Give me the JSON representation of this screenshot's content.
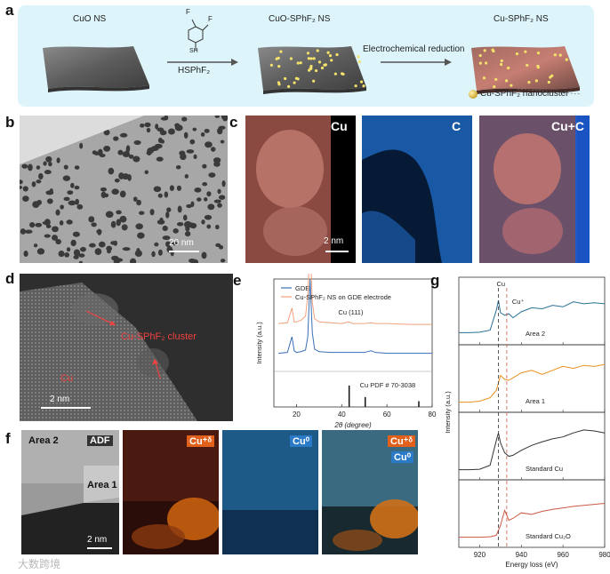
{
  "figure": {
    "panel_a": {
      "letter": "a",
      "stage1": "CuO NS",
      "reagent_formula": "HSPhF₂",
      "molecule_atom_f1": "F",
      "molecule_atom_f2": "F",
      "molecule_atom_sh": "SH",
      "stage2": "CuO-SPhF₂ NS",
      "step2": "Electrochemical reduction",
      "stage3": "Cu-SPhF₂ NS",
      "legend": "Cu-SPhF₂ nanocluster"
    },
    "panel_b": {
      "letter": "b",
      "scale": "20 nm"
    },
    "panel_c": {
      "letter": "c",
      "label_cu": "Cu",
      "label_c": "C",
      "label_cuc": "Cu+C",
      "scale": "2 nm"
    },
    "panel_d": {
      "letter": "d",
      "label_cluster": "Cu-SPhF₂ cluster",
      "label_cu": "Cu",
      "scale": "2 nm"
    },
    "panel_e": {
      "letter": "e"
    },
    "panel_f": {
      "letter": "f",
      "area2": "Area 2",
      "adf": "ADF",
      "area1": "Area 1",
      "cu_plus": "Cu⁺ᵟ",
      "cu_zero": "Cu⁰",
      "scale": "2 nm"
    },
    "panel_g": {
      "letter": "g"
    },
    "watermark": "大数跨境"
  },
  "colors": {
    "gde": "#3a6fb5",
    "cu_sphf2": "#f2a07a",
    "area2": "#2a7096",
    "area1": "#e8901c",
    "std_cu": "#333333",
    "std_cu2o": "#c85a44",
    "cu_map": "#e88068",
    "c_map": "#2a8ae0",
    "cluster_label": "#f04040"
  },
  "chart_data": [
    {
      "type": "line",
      "panel": "e",
      "xlabel": "2θ (degree)",
      "ylabel": "Intensity (a.u.)",
      "xlim": [
        10,
        80
      ],
      "xticks": [
        20,
        40,
        60,
        80
      ],
      "legend_placement": "top-right",
      "series": [
        {
          "name": "GDE",
          "x": [
            12,
            16,
            18,
            19,
            20,
            22,
            24,
            25,
            26,
            27,
            28,
            30,
            35,
            40,
            43,
            45,
            50,
            53,
            55,
            60,
            70,
            80
          ],
          "y": [
            0.1,
            0.11,
            0.3,
            0.13,
            0.11,
            0.12,
            0.14,
            0.3,
            1.0,
            0.35,
            0.15,
            0.12,
            0.11,
            0.11,
            0.11,
            0.11,
            0.11,
            0.13,
            0.11,
            0.1,
            0.1,
            0.1
          ]
        },
        {
          "name": "Cu-SPhF₂ NS on GDE electrode",
          "x": [
            12,
            16,
            18,
            19,
            20,
            22,
            24,
            25,
            26,
            27,
            28,
            30,
            35,
            40,
            43,
            45,
            50,
            53,
            55,
            60,
            70,
            80
          ],
          "y": [
            0.46,
            0.47,
            0.65,
            0.48,
            0.48,
            0.5,
            0.55,
            0.8,
            1.45,
            0.72,
            0.52,
            0.48,
            0.47,
            0.46,
            0.48,
            0.46,
            0.46,
            0.47,
            0.46,
            0.46,
            0.45,
            0.45
          ]
        }
      ],
      "annotations": [
        "Cu (111)",
        "Cu PDF # 70-3038"
      ],
      "reference_lines": [
        {
          "x": 43.3,
          "height": 0.26
        },
        {
          "x": 50.4,
          "height": 0.12
        },
        {
          "x": 74.1,
          "height": 0.07
        }
      ]
    },
    {
      "type": "line",
      "panel": "g",
      "xlabel": "Energy loss (eV)",
      "ylabel": "Intensity (a.u.)",
      "xlim": [
        910,
        980
      ],
      "xticks": [
        920,
        940,
        960,
        980
      ],
      "vertical_markers": [
        {
          "label": "Cu",
          "x": 929
        },
        {
          "label": "Cu⁺",
          "x": 933
        }
      ],
      "series": [
        {
          "name": "Area 2",
          "x": [
            910,
            915,
            920,
            925,
            928,
            929,
            930,
            932,
            934,
            936,
            940,
            945,
            950,
            955,
            960,
            965,
            970,
            975,
            980
          ],
          "y": [
            0.1,
            0.1,
            0.11,
            0.15,
            0.55,
            0.75,
            0.5,
            0.45,
            0.48,
            0.4,
            0.52,
            0.6,
            0.58,
            0.65,
            0.62,
            0.72,
            0.68,
            0.7,
            0.68
          ]
        },
        {
          "name": "Area 1",
          "x": [
            910,
            915,
            920,
            925,
            928,
            930,
            932,
            934,
            936,
            940,
            945,
            950,
            955,
            960,
            965,
            970,
            975,
            980
          ],
          "y": [
            0.06,
            0.06,
            0.08,
            0.15,
            0.3,
            0.6,
            0.52,
            0.5,
            0.55,
            0.65,
            0.7,
            0.62,
            0.7,
            0.78,
            0.74,
            0.8,
            0.78,
            0.82
          ]
        },
        {
          "name": "Standard Cu",
          "x": [
            910,
            915,
            920,
            925,
            928,
            929,
            930,
            932,
            934,
            936,
            940,
            945,
            950,
            955,
            960,
            965,
            970,
            975,
            980
          ],
          "y": [
            0.06,
            0.06,
            0.07,
            0.15,
            0.65,
            0.8,
            0.6,
            0.4,
            0.33,
            0.35,
            0.45,
            0.55,
            0.62,
            0.68,
            0.72,
            0.8,
            0.86,
            0.84,
            0.8
          ]
        },
        {
          "name": "Standard Cu₂O",
          "x": [
            910,
            915,
            920,
            925,
            928,
            930,
            932,
            934,
            936,
            940,
            945,
            950,
            955,
            960,
            965,
            970,
            975,
            980
          ],
          "y": [
            0.06,
            0.06,
            0.06,
            0.07,
            0.1,
            0.3,
            0.6,
            0.4,
            0.44,
            0.55,
            0.52,
            0.58,
            0.62,
            0.65,
            0.68,
            0.7,
            0.72,
            0.74
          ]
        }
      ],
      "series_labels": [
        "Area 2",
        "Area 1",
        "Standard Cu",
        "Standard Cu₂O"
      ]
    }
  ]
}
